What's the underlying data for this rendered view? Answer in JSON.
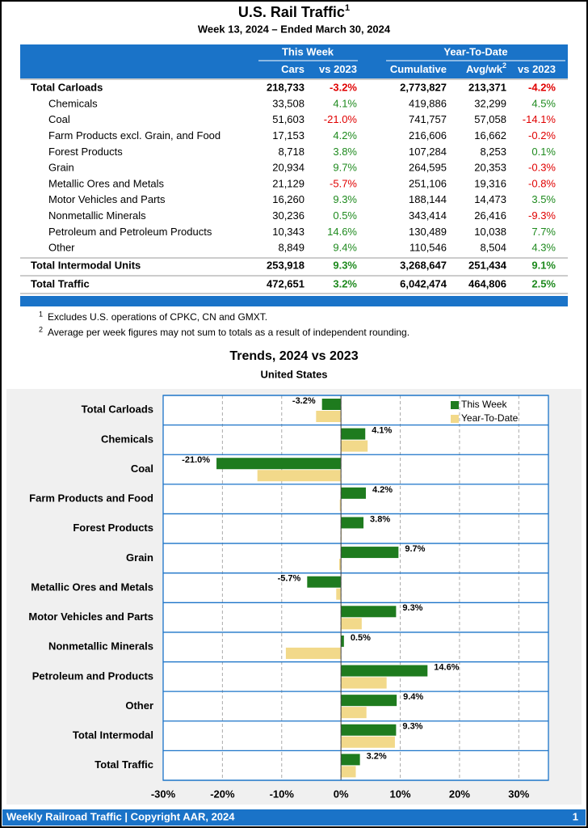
{
  "header": {
    "title": "U.S. Rail Traffic",
    "title_note": "1",
    "subtitle": "Week 13, 2024 – Ended March 30, 2024"
  },
  "table": {
    "groups": [
      "This Week",
      "Year-To-Date"
    ],
    "columns": [
      "Cars",
      "vs 2023",
      "Cumulative",
      "Avg/wk",
      "vs 2023"
    ],
    "column_note": "2",
    "rows": [
      [
        "Total Carloads",
        "218,733",
        "-3.2%",
        "2,773,827",
        "213,371",
        "-4.2%"
      ],
      [
        "Chemicals",
        "33,508",
        "4.1%",
        "419,886",
        "32,299",
        "4.5%"
      ],
      [
        "Coal",
        "51,603",
        "-21.0%",
        "741,757",
        "57,058",
        "-14.1%"
      ],
      [
        "Farm Products excl. Grain, and Food",
        "17,153",
        "4.2%",
        "216,606",
        "16,662",
        "-0.2%"
      ],
      [
        "Forest Products",
        "8,718",
        "3.8%",
        "107,284",
        "8,253",
        "0.1%"
      ],
      [
        "Grain",
        "20,934",
        "9.7%",
        "264,595",
        "20,353",
        "-0.3%"
      ],
      [
        "Metallic Ores and Metals",
        "21,129",
        "-5.7%",
        "251,106",
        "19,316",
        "-0.8%"
      ],
      [
        "Motor Vehicles and Parts",
        "16,260",
        "9.3%",
        "188,144",
        "14,473",
        "3.5%"
      ],
      [
        "Nonmetallic Minerals",
        "30,236",
        "0.5%",
        "343,414",
        "26,416",
        "-9.3%"
      ],
      [
        "Petroleum and Petroleum Products",
        "10,343",
        "14.6%",
        "130,489",
        "10,038",
        "7.7%"
      ],
      [
        "Other",
        "8,849",
        "9.4%",
        "110,546",
        "8,504",
        "4.3%"
      ],
      [
        "Total Intermodal Units",
        "253,918",
        "9.3%",
        "3,268,647",
        "251,434",
        "9.1%"
      ],
      [
        "Total Traffic",
        "472,651",
        "3.2%",
        "6,042,474",
        "464,806",
        "2.5%"
      ]
    ]
  },
  "footnotes": [
    {
      "mark": "1",
      "text": "Excludes U.S. operations of CPKC, CN and GMXT."
    },
    {
      "mark": "2",
      "text": "Average per week figures may not sum to totals as a result of independent rounding."
    }
  ],
  "chart_data": {
    "type": "bar",
    "orientation": "horizontal",
    "title": "Trends, 2024 vs 2023",
    "subtitle": "United States",
    "categories": [
      "Total Carloads",
      "Chemicals",
      "Coal",
      "Farm Products and Food",
      "Forest Products",
      "Grain",
      "Metallic Ores and Metals",
      "Motor Vehicles and Parts",
      "Nonmetallic Minerals",
      "Petroleum and Products",
      "Other",
      "Total Intermodal",
      "Total Traffic"
    ],
    "series": [
      {
        "name": "This Week",
        "color": "#1e7b1e",
        "values": [
          -3.2,
          4.1,
          -21.0,
          4.2,
          3.8,
          9.7,
          -5.7,
          9.3,
          0.5,
          14.6,
          9.4,
          9.3,
          3.2
        ],
        "value_labels": [
          "-3.2%",
          "4.1%",
          "-21.0%",
          "4.2%",
          "3.8%",
          "9.7%",
          "-5.7%",
          "9.3%",
          "0.5%",
          "14.6%",
          "9.4%",
          "9.3%",
          "3.2%"
        ]
      },
      {
        "name": "Year-To-Date",
        "color": "#f2d98a",
        "values": [
          -4.2,
          4.5,
          -14.1,
          -0.2,
          0.1,
          -0.3,
          -0.8,
          3.5,
          -9.3,
          7.7,
          4.3,
          9.1,
          2.5
        ]
      }
    ],
    "xlim": [
      -30,
      35
    ],
    "xticks": [
      {
        "value": -30,
        "label": "-30%"
      },
      {
        "value": -20,
        "label": "-20%"
      },
      {
        "value": -10,
        "label": "-10%"
      },
      {
        "value": 0,
        "label": "0%"
      },
      {
        "value": 10,
        "label": "10%"
      },
      {
        "value": 20,
        "label": "20%"
      },
      {
        "value": 30,
        "label": "30%"
      }
    ],
    "grid": true,
    "legend": "upper right"
  },
  "footer": {
    "text": "Weekly Railroad Traffic | Copyright AAR, 2024",
    "page": "1"
  }
}
